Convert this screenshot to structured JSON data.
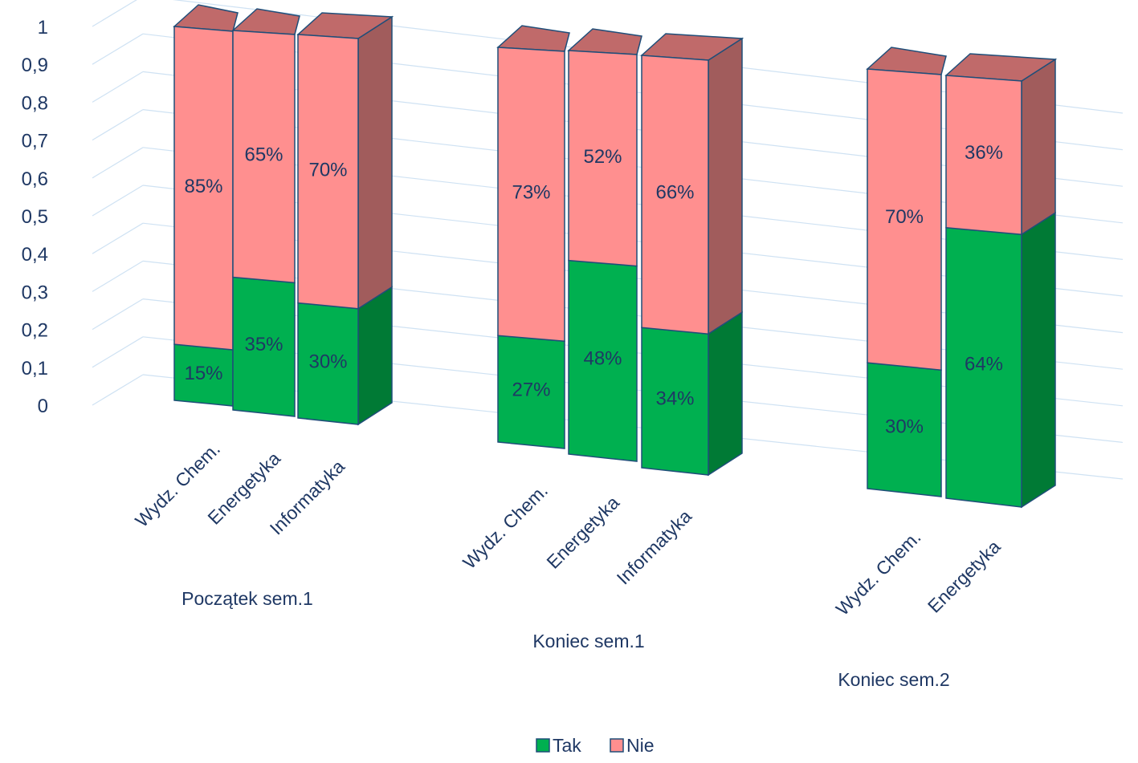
{
  "chart_data": {
    "type": "bar",
    "stacked": true,
    "perspective_3d": true,
    "grid": true,
    "legend_position": "bottom",
    "y_ticks": [
      "0",
      "0,1",
      "0,2",
      "0,3",
      "0,4",
      "0,5",
      "0,6",
      "0,7",
      "0,8",
      "0,9",
      "1"
    ],
    "ylim": [
      0,
      1
    ],
    "groups": [
      {
        "name": "Początek sem.1",
        "categories": [
          "Wydz. Chem.",
          "Energetyka",
          "Informatyka"
        ],
        "tak": [
          0.15,
          0.35,
          0.3
        ],
        "nie": [
          0.85,
          0.65,
          0.7
        ],
        "tak_labels": [
          "15%",
          "35%",
          "30%"
        ],
        "nie_labels": [
          "85%",
          "65%",
          "70%"
        ]
      },
      {
        "name": "Koniec sem.1",
        "categories": [
          "Wydz. Chem.",
          "Energetyka",
          "Informatyka"
        ],
        "tak": [
          0.27,
          0.48,
          0.34
        ],
        "nie": [
          0.73,
          0.52,
          0.66
        ],
        "tak_labels": [
          "27%",
          "48%",
          "34%"
        ],
        "nie_labels": [
          "73%",
          "52%",
          "66%"
        ]
      },
      {
        "name": "Koniec sem.2",
        "categories": [
          "Wydz. Chem.",
          "Energetyka"
        ],
        "tak": [
          0.3,
          0.64
        ],
        "nie": [
          0.7,
          0.36
        ],
        "tak_labels": [
          "30%",
          "64%"
        ],
        "nie_labels": [
          "70%",
          "36%"
        ]
      }
    ],
    "legend": [
      {
        "name": "Tak",
        "color": "#00b050"
      },
      {
        "name": "Nie",
        "color": "#ff8f8f"
      }
    ],
    "colors": {
      "tak_front": "#00b050",
      "tak_side": "#007a35",
      "tak_top": "#00a048",
      "nie_front": "#ff8f8f",
      "nie_side": "#a15c5c",
      "nie_top": "#c06a6a",
      "outline": "#1f4e79",
      "grid": "#cfe2f3",
      "text": "#1f3864"
    }
  }
}
